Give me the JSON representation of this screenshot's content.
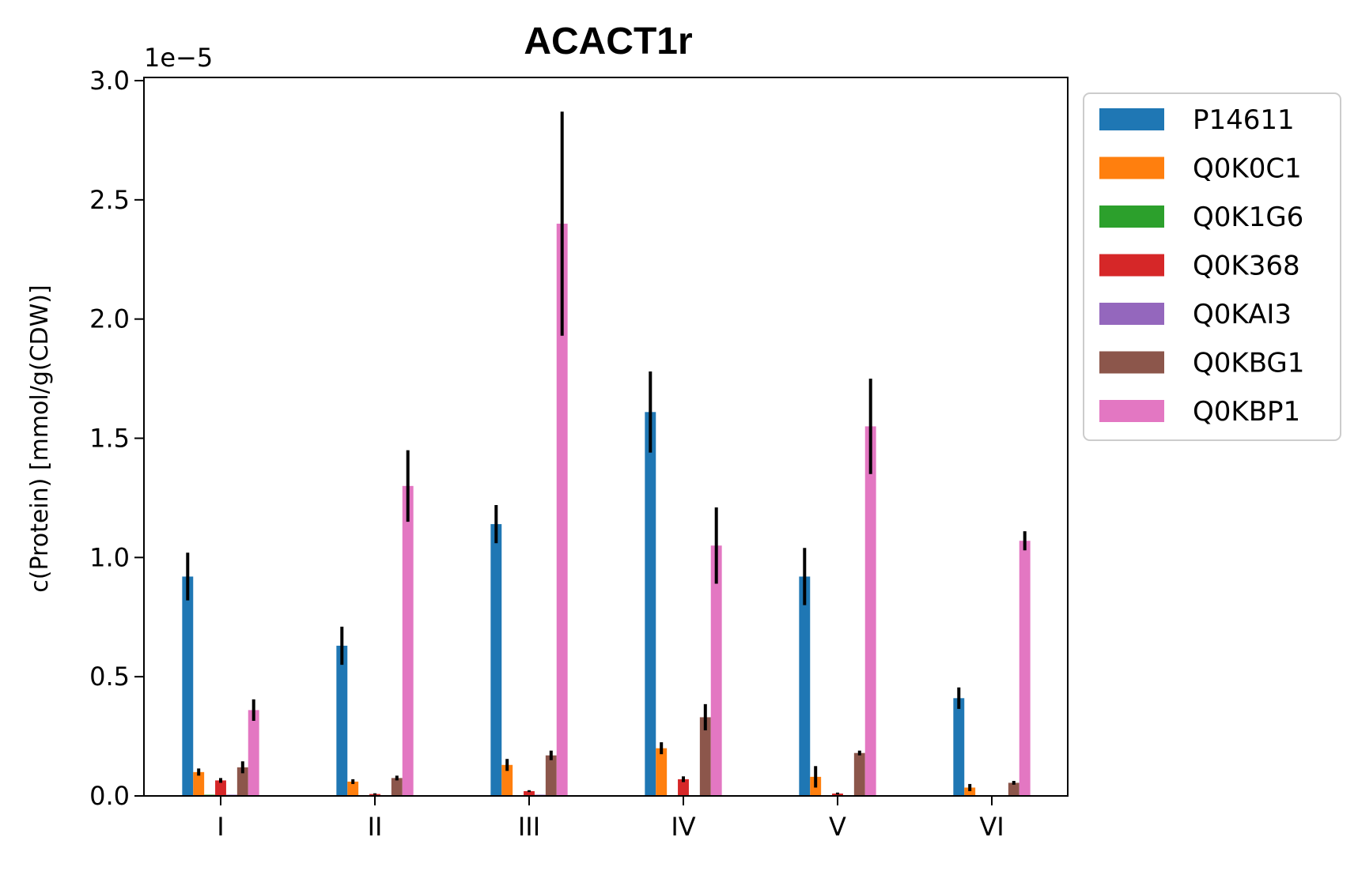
{
  "chart_data": {
    "type": "bar",
    "title": "ACACT1r",
    "ylabel": "c(Protein) [mmol/g(CDW)]",
    "xlabel": "",
    "offset_label": "1e−5",
    "scale": 1e-05,
    "ylim": [
      0,
      3.0
    ],
    "yticks": [
      "0.0",
      "0.5",
      "1.0",
      "1.5",
      "2.0",
      "2.5",
      "3.0"
    ],
    "categories": [
      "I",
      "II",
      "III",
      "IV",
      "V",
      "VI"
    ],
    "legend_position": "outside-right",
    "grid": false,
    "series": [
      {
        "name": "P14611",
        "color": "#1f77b4",
        "values": [
          0.92,
          0.63,
          1.14,
          1.61,
          0.92,
          0.41
        ],
        "errors": [
          0.1,
          0.08,
          0.08,
          0.17,
          0.12,
          0.045
        ]
      },
      {
        "name": "Q0K0C1",
        "color": "#ff7f0e",
        "values": [
          0.1,
          0.06,
          0.13,
          0.2,
          0.08,
          0.035
        ],
        "errors": [
          0.015,
          0.01,
          0.025,
          0.025,
          0.045,
          0.015
        ]
      },
      {
        "name": "Q0K1G6",
        "color": "#2ca02c",
        "values": [
          0.005,
          0.0,
          0.0,
          0.0,
          0.0,
          0.0
        ],
        "errors": [
          0.0,
          0.0,
          0.0,
          0.0,
          0.0,
          0.0
        ]
      },
      {
        "name": "Q0K368",
        "color": "#d62728",
        "values": [
          0.065,
          0.008,
          0.02,
          0.07,
          0.01,
          0.0
        ],
        "errors": [
          0.01,
          0.003,
          0.004,
          0.012,
          0.004,
          0.0
        ]
      },
      {
        "name": "Q0KAI3",
        "color": "#9467bd",
        "values": [
          0.005,
          0.0,
          0.005,
          0.0,
          0.0,
          0.0
        ],
        "errors": [
          0.0,
          0.0,
          0.0,
          0.0,
          0.0,
          0.0
        ]
      },
      {
        "name": "Q0KBG1",
        "color": "#8c564b",
        "values": [
          0.12,
          0.075,
          0.17,
          0.33,
          0.18,
          0.055
        ],
        "errors": [
          0.025,
          0.01,
          0.02,
          0.055,
          0.01,
          0.008
        ]
      },
      {
        "name": "Q0KBP1",
        "color": "#e377c2",
        "values": [
          0.36,
          1.3,
          2.4,
          1.05,
          1.55,
          1.07
        ],
        "errors": [
          0.045,
          0.15,
          0.47,
          0.16,
          0.2,
          0.04
        ]
      }
    ]
  }
}
